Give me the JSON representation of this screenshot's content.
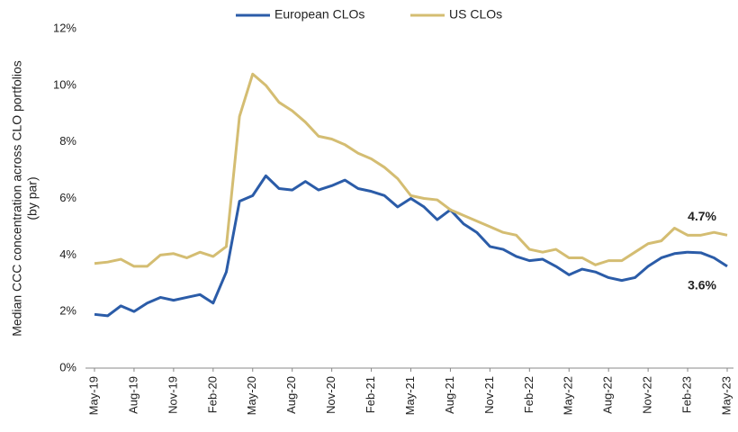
{
  "chart_data": {
    "type": "line",
    "y_label": [
      "Median CCC concentration across CLO portfolios",
      "(by par)"
    ],
    "categories": [
      "May-19",
      null,
      null,
      "Aug-19",
      null,
      null,
      "Nov-19",
      null,
      null,
      "Feb-20",
      null,
      null,
      "May-20",
      null,
      null,
      "Aug-20",
      null,
      null,
      "Nov-20",
      null,
      null,
      "Feb-21",
      null,
      null,
      "May-21",
      null,
      null,
      "Aug-21",
      null,
      null,
      "Nov-21",
      null,
      null,
      "Feb-22",
      null,
      null,
      "May-22",
      null,
      null,
      "Aug-22",
      null,
      null,
      "Nov-22",
      null,
      null,
      "Feb-23",
      null,
      null,
      "May-23"
    ],
    "series": [
      {
        "name": "European CLOs",
        "color": "#2b5ca8",
        "values": [
          1.9,
          1.85,
          2.2,
          2.0,
          2.3,
          2.5,
          2.4,
          2.5,
          2.6,
          2.3,
          3.4,
          5.9,
          6.1,
          6.8,
          6.35,
          6.3,
          6.6,
          6.3,
          6.45,
          6.65,
          6.35,
          6.25,
          6.1,
          5.7,
          6.0,
          5.7,
          5.25,
          5.6,
          5.1,
          4.8,
          4.3,
          4.2,
          3.95,
          3.8,
          3.85,
          3.6,
          3.3,
          3.5,
          3.4,
          3.2,
          3.1,
          3.2,
          3.6,
          3.9,
          4.05,
          4.1,
          4.08,
          3.9,
          3.6
        ],
        "value_labels": [
          null,
          null,
          null,
          null,
          null,
          null,
          null,
          null,
          null,
          null,
          null,
          null,
          null,
          null,
          null,
          null,
          null,
          null,
          null,
          null,
          null,
          null,
          null,
          null,
          null,
          null,
          null,
          null,
          null,
          null,
          null,
          null,
          null,
          null,
          null,
          null,
          null,
          null,
          null,
          null,
          null,
          null,
          null,
          null,
          null,
          null,
          null,
          null,
          "3.6%"
        ]
      },
      {
        "name": "US CLOs",
        "color": "#d4bd72",
        "values": [
          3.7,
          3.75,
          3.85,
          3.6,
          3.6,
          4.0,
          4.05,
          3.9,
          4.1,
          3.95,
          4.3,
          8.9,
          10.4,
          10.0,
          9.4,
          9.1,
          8.7,
          8.2,
          8.1,
          7.9,
          7.6,
          7.4,
          7.1,
          6.7,
          6.1,
          6.0,
          5.95,
          5.6,
          5.4,
          5.2,
          5.0,
          4.8,
          4.7,
          4.2,
          4.1,
          4.2,
          3.9,
          3.9,
          3.65,
          3.8,
          3.8,
          4.1,
          4.4,
          4.5,
          4.95,
          4.7,
          4.7,
          4.8,
          4.7
        ],
        "value_labels": [
          null,
          null,
          null,
          null,
          null,
          null,
          null,
          null,
          null,
          null,
          null,
          null,
          null,
          null,
          null,
          null,
          null,
          null,
          null,
          null,
          null,
          null,
          null,
          null,
          null,
          null,
          null,
          null,
          null,
          null,
          null,
          null,
          null,
          null,
          null,
          null,
          null,
          null,
          null,
          null,
          null,
          null,
          null,
          null,
          null,
          null,
          null,
          null,
          "4.7%"
        ]
      }
    ],
    "ylim": [
      0,
      12
    ],
    "yticks": [
      {
        "value": 0,
        "label": "0%"
      },
      {
        "value": 2,
        "label": "2%"
      },
      {
        "value": 4,
        "label": "4%"
      },
      {
        "value": 6,
        "label": "6%"
      },
      {
        "value": 8,
        "label": "8%"
      },
      {
        "value": 10,
        "label": "10%"
      },
      {
        "value": 12,
        "label": "12%"
      }
    ],
    "grid": false
  }
}
